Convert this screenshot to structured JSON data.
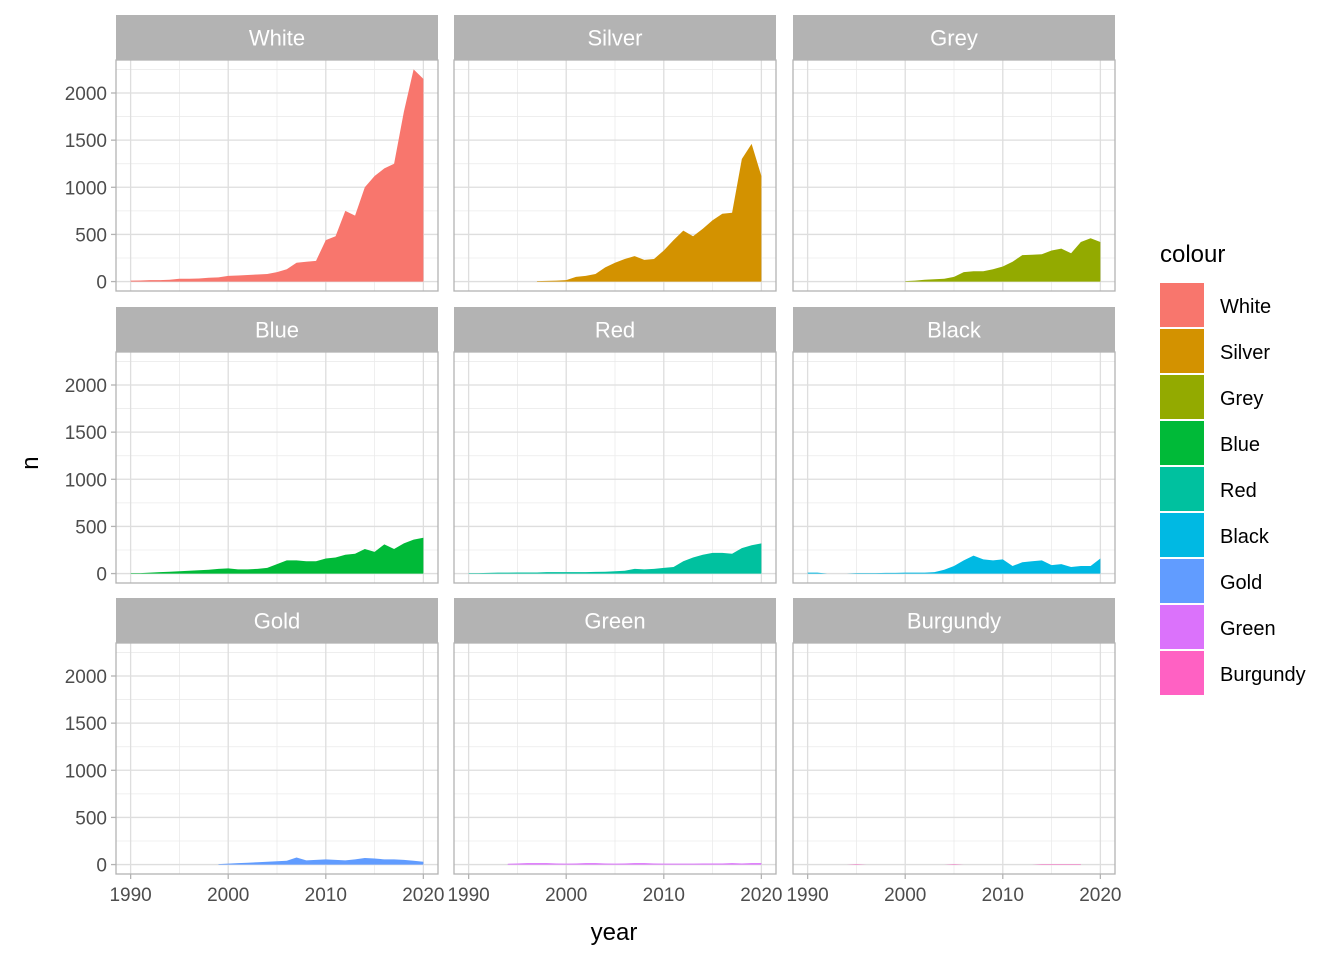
{
  "chart_data": {
    "type": "area",
    "facet_layout": "3x3 grid",
    "xlabel": "year",
    "ylabel": "n",
    "xlim": [
      1988.5,
      2021.5
    ],
    "ylim": [
      -100,
      2350
    ],
    "x_ticks": [
      "1990",
      "2000",
      "2010",
      "2020"
    ],
    "y_ticks": [
      "0",
      "500",
      "1000",
      "1500",
      "2000"
    ],
    "grid": true,
    "legend": {
      "title": "colour",
      "placement": "right",
      "entries": [
        "White",
        "Silver",
        "Grey",
        "Blue",
        "Red",
        "Black",
        "Gold",
        "Green",
        "Burgundy"
      ]
    },
    "series": [
      {
        "name": "White",
        "color": "#F8766D",
        "x": [
          1990,
          1991,
          1992,
          1993,
          1994,
          1995,
          1996,
          1997,
          1998,
          1999,
          2000,
          2001,
          2002,
          2003,
          2004,
          2005,
          2006,
          2007,
          2008,
          2009,
          2010,
          2011,
          2012,
          2013,
          2014,
          2015,
          2016,
          2017,
          2018,
          2019,
          2020
        ],
        "y": [
          10,
          12,
          15,
          15,
          20,
          30,
          30,
          32,
          40,
          45,
          60,
          65,
          70,
          75,
          80,
          100,
          130,
          200,
          210,
          220,
          440,
          480,
          750,
          700,
          1000,
          1120,
          1200,
          1250,
          1800,
          2250,
          2150
        ]
      },
      {
        "name": "Silver",
        "color": "#D39200",
        "x": [
          1997,
          1998,
          1999,
          2000,
          2001,
          2002,
          2003,
          2004,
          2005,
          2006,
          2007,
          2008,
          2009,
          2010,
          2011,
          2012,
          2013,
          2014,
          2015,
          2016,
          2017,
          2018,
          2019,
          2020
        ],
        "y": [
          5,
          8,
          10,
          15,
          50,
          60,
          80,
          150,
          200,
          240,
          270,
          230,
          240,
          330,
          440,
          540,
          480,
          560,
          650,
          720,
          730,
          1300,
          1460,
          1120
        ]
      },
      {
        "name": "Grey",
        "color": "#93AA00",
        "x": [
          2000,
          2001,
          2002,
          2003,
          2004,
          2005,
          2006,
          2007,
          2008,
          2009,
          2010,
          2011,
          2012,
          2013,
          2014,
          2015,
          2016,
          2017,
          2018,
          2019,
          2020
        ],
        "y": [
          5,
          10,
          20,
          25,
          30,
          50,
          100,
          110,
          110,
          130,
          160,
          210,
          280,
          285,
          290,
          330,
          350,
          300,
          420,
          460,
          420
        ]
      },
      {
        "name": "Blue",
        "color": "#00BA38",
        "x": [
          1990,
          1991,
          1992,
          1993,
          1994,
          1995,
          1996,
          1997,
          1998,
          1999,
          2000,
          2001,
          2002,
          2003,
          2004,
          2005,
          2006,
          2007,
          2008,
          2009,
          2010,
          2011,
          2012,
          2013,
          2014,
          2015,
          2016,
          2017,
          2018,
          2019,
          2020
        ],
        "y": [
          5,
          5,
          10,
          15,
          20,
          25,
          30,
          35,
          40,
          50,
          55,
          45,
          45,
          50,
          60,
          100,
          140,
          140,
          130,
          130,
          160,
          170,
          200,
          210,
          260,
          230,
          310,
          260,
          320,
          360,
          380
        ]
      },
      {
        "name": "Red",
        "color": "#00C19F",
        "x": [
          1990,
          1991,
          1992,
          1993,
          1994,
          1995,
          1996,
          1997,
          1998,
          1999,
          2000,
          2001,
          2002,
          2003,
          2004,
          2005,
          2006,
          2007,
          2008,
          2009,
          2010,
          2011,
          2012,
          2013,
          2014,
          2015,
          2016,
          2017,
          2018,
          2019,
          2020
        ],
        "y": [
          5,
          5,
          8,
          10,
          10,
          12,
          12,
          12,
          15,
          15,
          15,
          15,
          15,
          18,
          20,
          25,
          30,
          50,
          45,
          50,
          60,
          70,
          130,
          170,
          200,
          220,
          220,
          210,
          270,
          300,
          320
        ]
      },
      {
        "name": "Black",
        "color": "#00B9E3",
        "x": [
          1990,
          1991,
          1992,
          1993,
          1994,
          1995,
          1996,
          1997,
          1998,
          1999,
          2000,
          2001,
          2002,
          2003,
          2004,
          2005,
          2006,
          2007,
          2008,
          2009,
          2010,
          2011,
          2012,
          2013,
          2014,
          2015,
          2016,
          2017,
          2018,
          2019,
          2020
        ],
        "y": [
          10,
          10,
          0,
          0,
          0,
          5,
          5,
          5,
          8,
          8,
          10,
          10,
          10,
          15,
          40,
          80,
          140,
          190,
          150,
          140,
          150,
          80,
          120,
          130,
          140,
          90,
          100,
          70,
          80,
          80,
          160
        ]
      },
      {
        "name": "Gold",
        "color": "#619CFF",
        "x": [
          1999,
          2000,
          2001,
          2002,
          2003,
          2004,
          2005,
          2006,
          2007,
          2008,
          2009,
          2010,
          2011,
          2012,
          2013,
          2014,
          2015,
          2016,
          2017,
          2018,
          2019,
          2020
        ],
        "y": [
          5,
          10,
          15,
          20,
          25,
          30,
          35,
          40,
          75,
          45,
          50,
          55,
          50,
          45,
          55,
          70,
          65,
          55,
          55,
          50,
          40,
          30
        ]
      },
      {
        "name": "Green",
        "color": "#DB72FB",
        "x": [
          1994,
          1995,
          1996,
          1997,
          1998,
          1999,
          2000,
          2001,
          2002,
          2003,
          2004,
          2005,
          2006,
          2007,
          2008,
          2009,
          2010,
          2011,
          2012,
          2013,
          2014,
          2015,
          2016,
          2017,
          2018,
          2019,
          2020
        ],
        "y": [
          8,
          12,
          15,
          15,
          15,
          12,
          10,
          12,
          15,
          15,
          12,
          10,
          12,
          15,
          15,
          12,
          10,
          10,
          10,
          10,
          12,
          12,
          12,
          15,
          12,
          15,
          15
        ]
      },
      {
        "name": "Burgundy",
        "color": "#FF61C3",
        "x": [
          1994,
          1995,
          1996,
          2004,
          2005,
          2006,
          2013,
          2014,
          2015,
          2016,
          2017,
          2018
        ],
        "y": [
          0,
          5,
          0,
          0,
          5,
          0,
          0,
          5,
          5,
          5,
          5,
          5
        ]
      }
    ]
  }
}
